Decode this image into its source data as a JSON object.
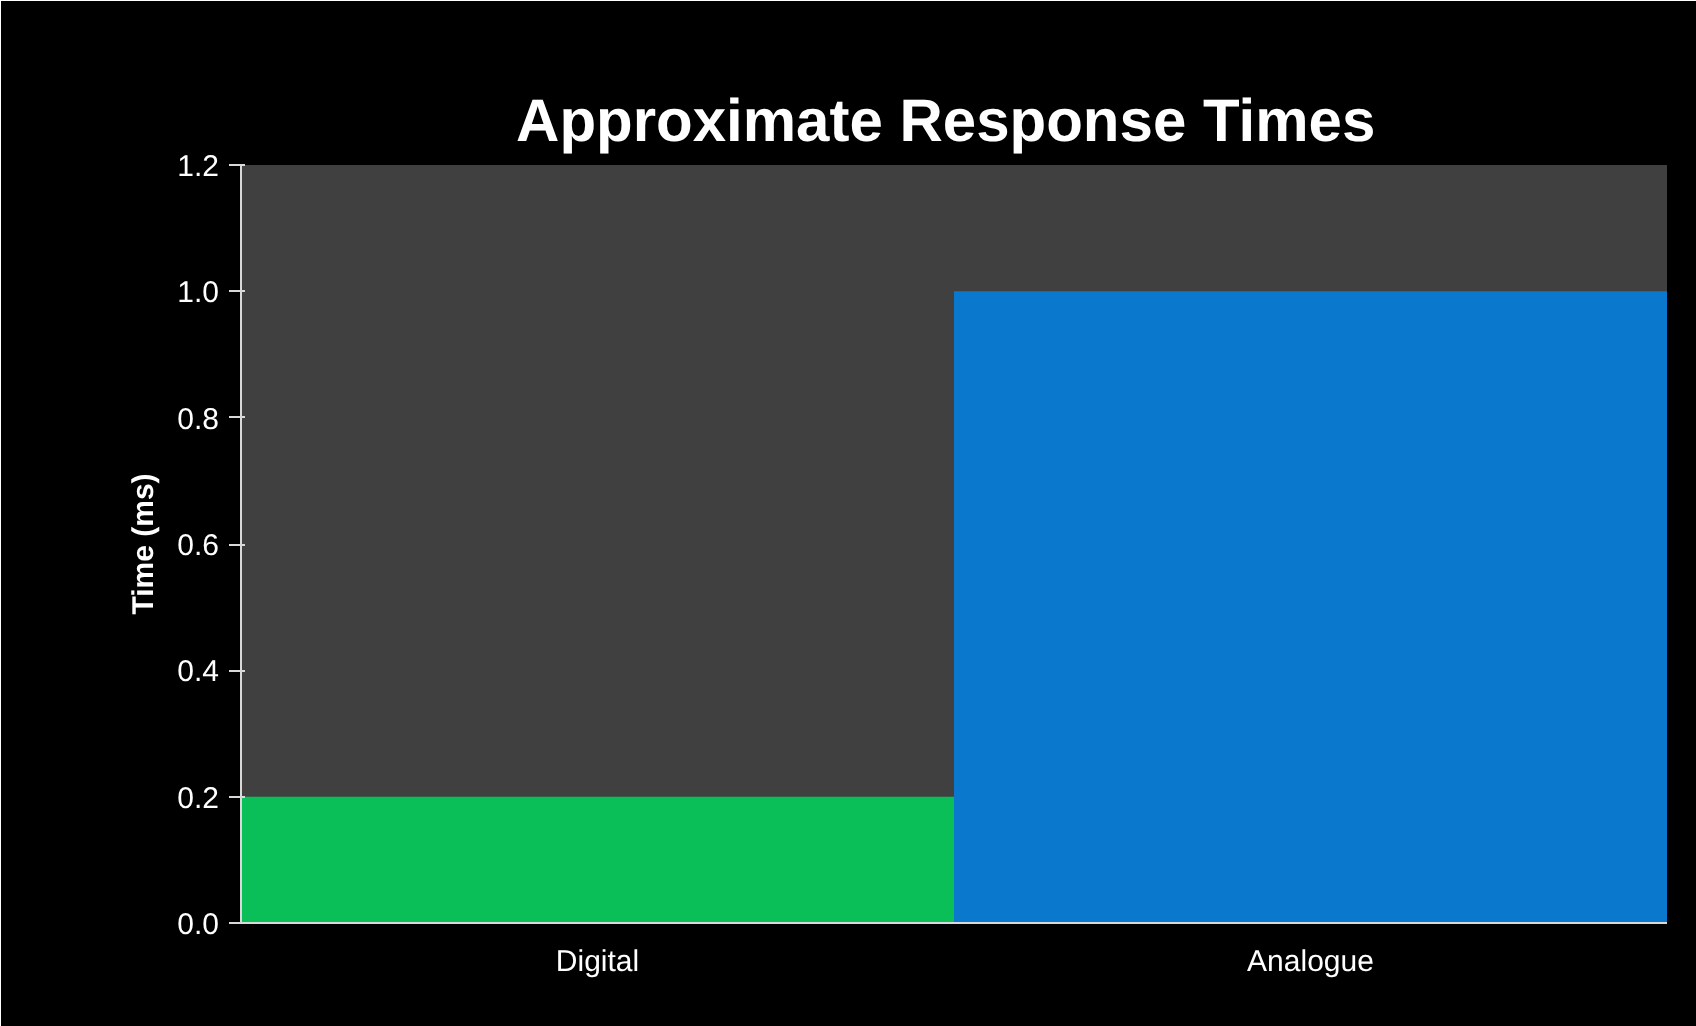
{
  "chart_data": {
    "type": "bar",
    "title": "Approximate  Response Times",
    "ylabel": "Time (ms)",
    "categories": [
      "Digital",
      "Analogue"
    ],
    "values": [
      0.2,
      1.0
    ],
    "colors": [
      "#0abf58",
      "#0a78cc"
    ],
    "ylim": [
      0,
      1.2
    ],
    "yticks": [
      {
        "value": 0,
        "label": "0.0"
      },
      {
        "value": 0.2,
        "label": "0.2"
      },
      {
        "value": 0.4,
        "label": "0.4"
      },
      {
        "value": 0.6,
        "label": "0.6"
      },
      {
        "value": 0.8,
        "label": "0.8"
      },
      {
        "value": 1.0,
        "label": "1.0"
      },
      {
        "value": 1.2,
        "label": "1.2"
      }
    ],
    "grid": false
  }
}
